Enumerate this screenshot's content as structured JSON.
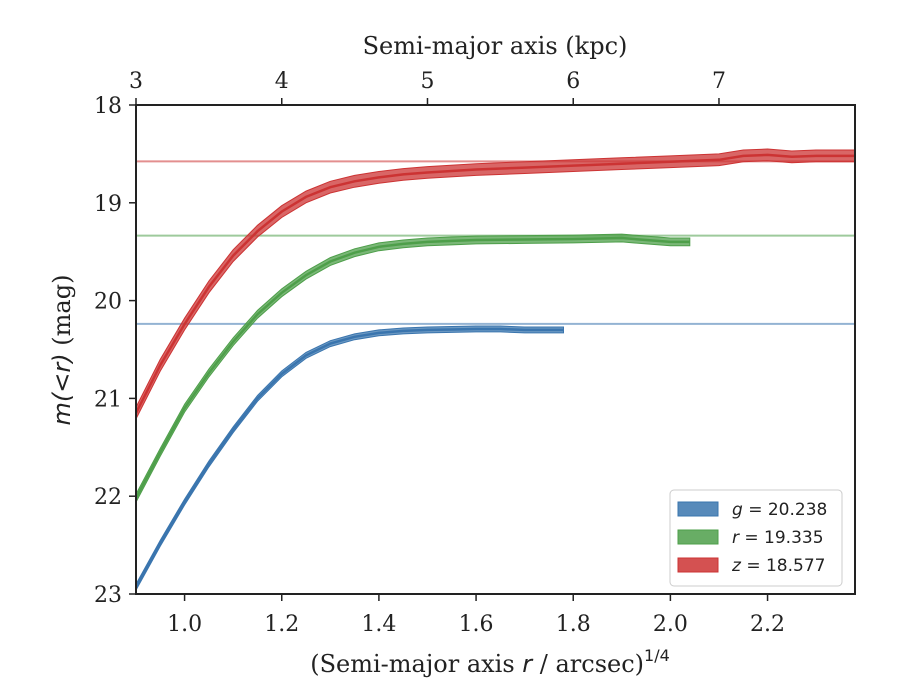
{
  "chart_data": {
    "type": "line",
    "xlabel": "(Semi-major axis r / arcsec)^{1/4}",
    "xlabel_parts": {
      "before": "(Semi-major axis ",
      "italic": "r",
      "after": " / arcsec)",
      "sup": "1/4"
    },
    "ylabel": "m(<r) (mag)",
    "ylabel_parts": {
      "italic": "m(<r)",
      "rest": " (mag)"
    },
    "top_xlabel": "Semi-major axis (kpc)",
    "xlim": [
      0.9,
      2.38
    ],
    "ylim": [
      23,
      18
    ],
    "y_inverted": true,
    "x_ticks": [
      1.0,
      1.2,
      1.4,
      1.6,
      1.8,
      2.0,
      2.2
    ],
    "x_tick_labels": [
      "1.0",
      "1.2",
      "1.4",
      "1.6",
      "1.8",
      "2.0",
      "2.2"
    ],
    "y_ticks": [
      18,
      19,
      20,
      21,
      22,
      23
    ],
    "y_tick_labels": [
      "18",
      "19",
      "20",
      "21",
      "22",
      "23"
    ],
    "top_x_ticks_kpc": [
      3,
      4,
      5,
      6,
      7
    ],
    "top_x_tick_labels": [
      "3",
      "4",
      "5",
      "6",
      "7"
    ],
    "top_x_tick_positions": [
      0.9,
      1.2,
      1.5,
      1.8,
      2.1
    ],
    "grid": false,
    "legend_position": "bottom-right",
    "series": [
      {
        "name": "g = 20.238",
        "legend_var": "g",
        "legend_value": "= 20.238",
        "color": "#3a75ae",
        "asymptote": 20.238,
        "fit_to_x": 2.38,
        "band_width": 0.03,
        "x": [
          0.9,
          0.95,
          1.0,
          1.05,
          1.1,
          1.15,
          1.2,
          1.25,
          1.3,
          1.35,
          1.4,
          1.45,
          1.5,
          1.55,
          1.6,
          1.65,
          1.7,
          1.75,
          1.78
        ],
        "y": [
          22.93,
          22.48,
          22.06,
          21.67,
          21.32,
          21.0,
          20.75,
          20.56,
          20.44,
          20.37,
          20.33,
          20.31,
          20.3,
          20.295,
          20.29,
          20.29,
          20.3,
          20.3,
          20.3
        ]
      },
      {
        "name": "r = 19.335",
        "legend_var": "r",
        "legend_value": "= 19.335",
        "color": "#4e9f4a",
        "asymptote": 19.335,
        "fit_to_x": 2.38,
        "band_width": 0.04,
        "x": [
          0.9,
          0.95,
          1.0,
          1.05,
          1.1,
          1.15,
          1.2,
          1.25,
          1.3,
          1.35,
          1.4,
          1.45,
          1.5,
          1.55,
          1.6,
          1.7,
          1.8,
          1.9,
          1.95,
          2.0,
          2.04
        ],
        "y": [
          22.02,
          21.55,
          21.1,
          20.74,
          20.42,
          20.14,
          19.92,
          19.74,
          19.6,
          19.51,
          19.45,
          19.42,
          19.4,
          19.39,
          19.38,
          19.375,
          19.37,
          19.36,
          19.38,
          19.4,
          19.4
        ]
      },
      {
        "name": "z = 18.577",
        "legend_var": "z",
        "legend_value": "= 18.577",
        "color": "#cc3333",
        "asymptote": 18.577,
        "fit_to_x": 2.38,
        "band_width": 0.06,
        "x": [
          0.9,
          0.95,
          1.0,
          1.05,
          1.1,
          1.15,
          1.2,
          1.25,
          1.3,
          1.35,
          1.4,
          1.45,
          1.5,
          1.6,
          1.7,
          1.8,
          1.9,
          2.0,
          2.1,
          2.15,
          2.2,
          2.25,
          2.3,
          2.38
        ],
        "y": [
          21.15,
          20.66,
          20.24,
          19.86,
          19.54,
          19.29,
          19.09,
          18.94,
          18.84,
          18.78,
          18.74,
          18.71,
          18.69,
          18.66,
          18.64,
          18.62,
          18.6,
          18.58,
          18.56,
          18.52,
          18.51,
          18.53,
          18.52,
          18.52
        ]
      }
    ]
  }
}
